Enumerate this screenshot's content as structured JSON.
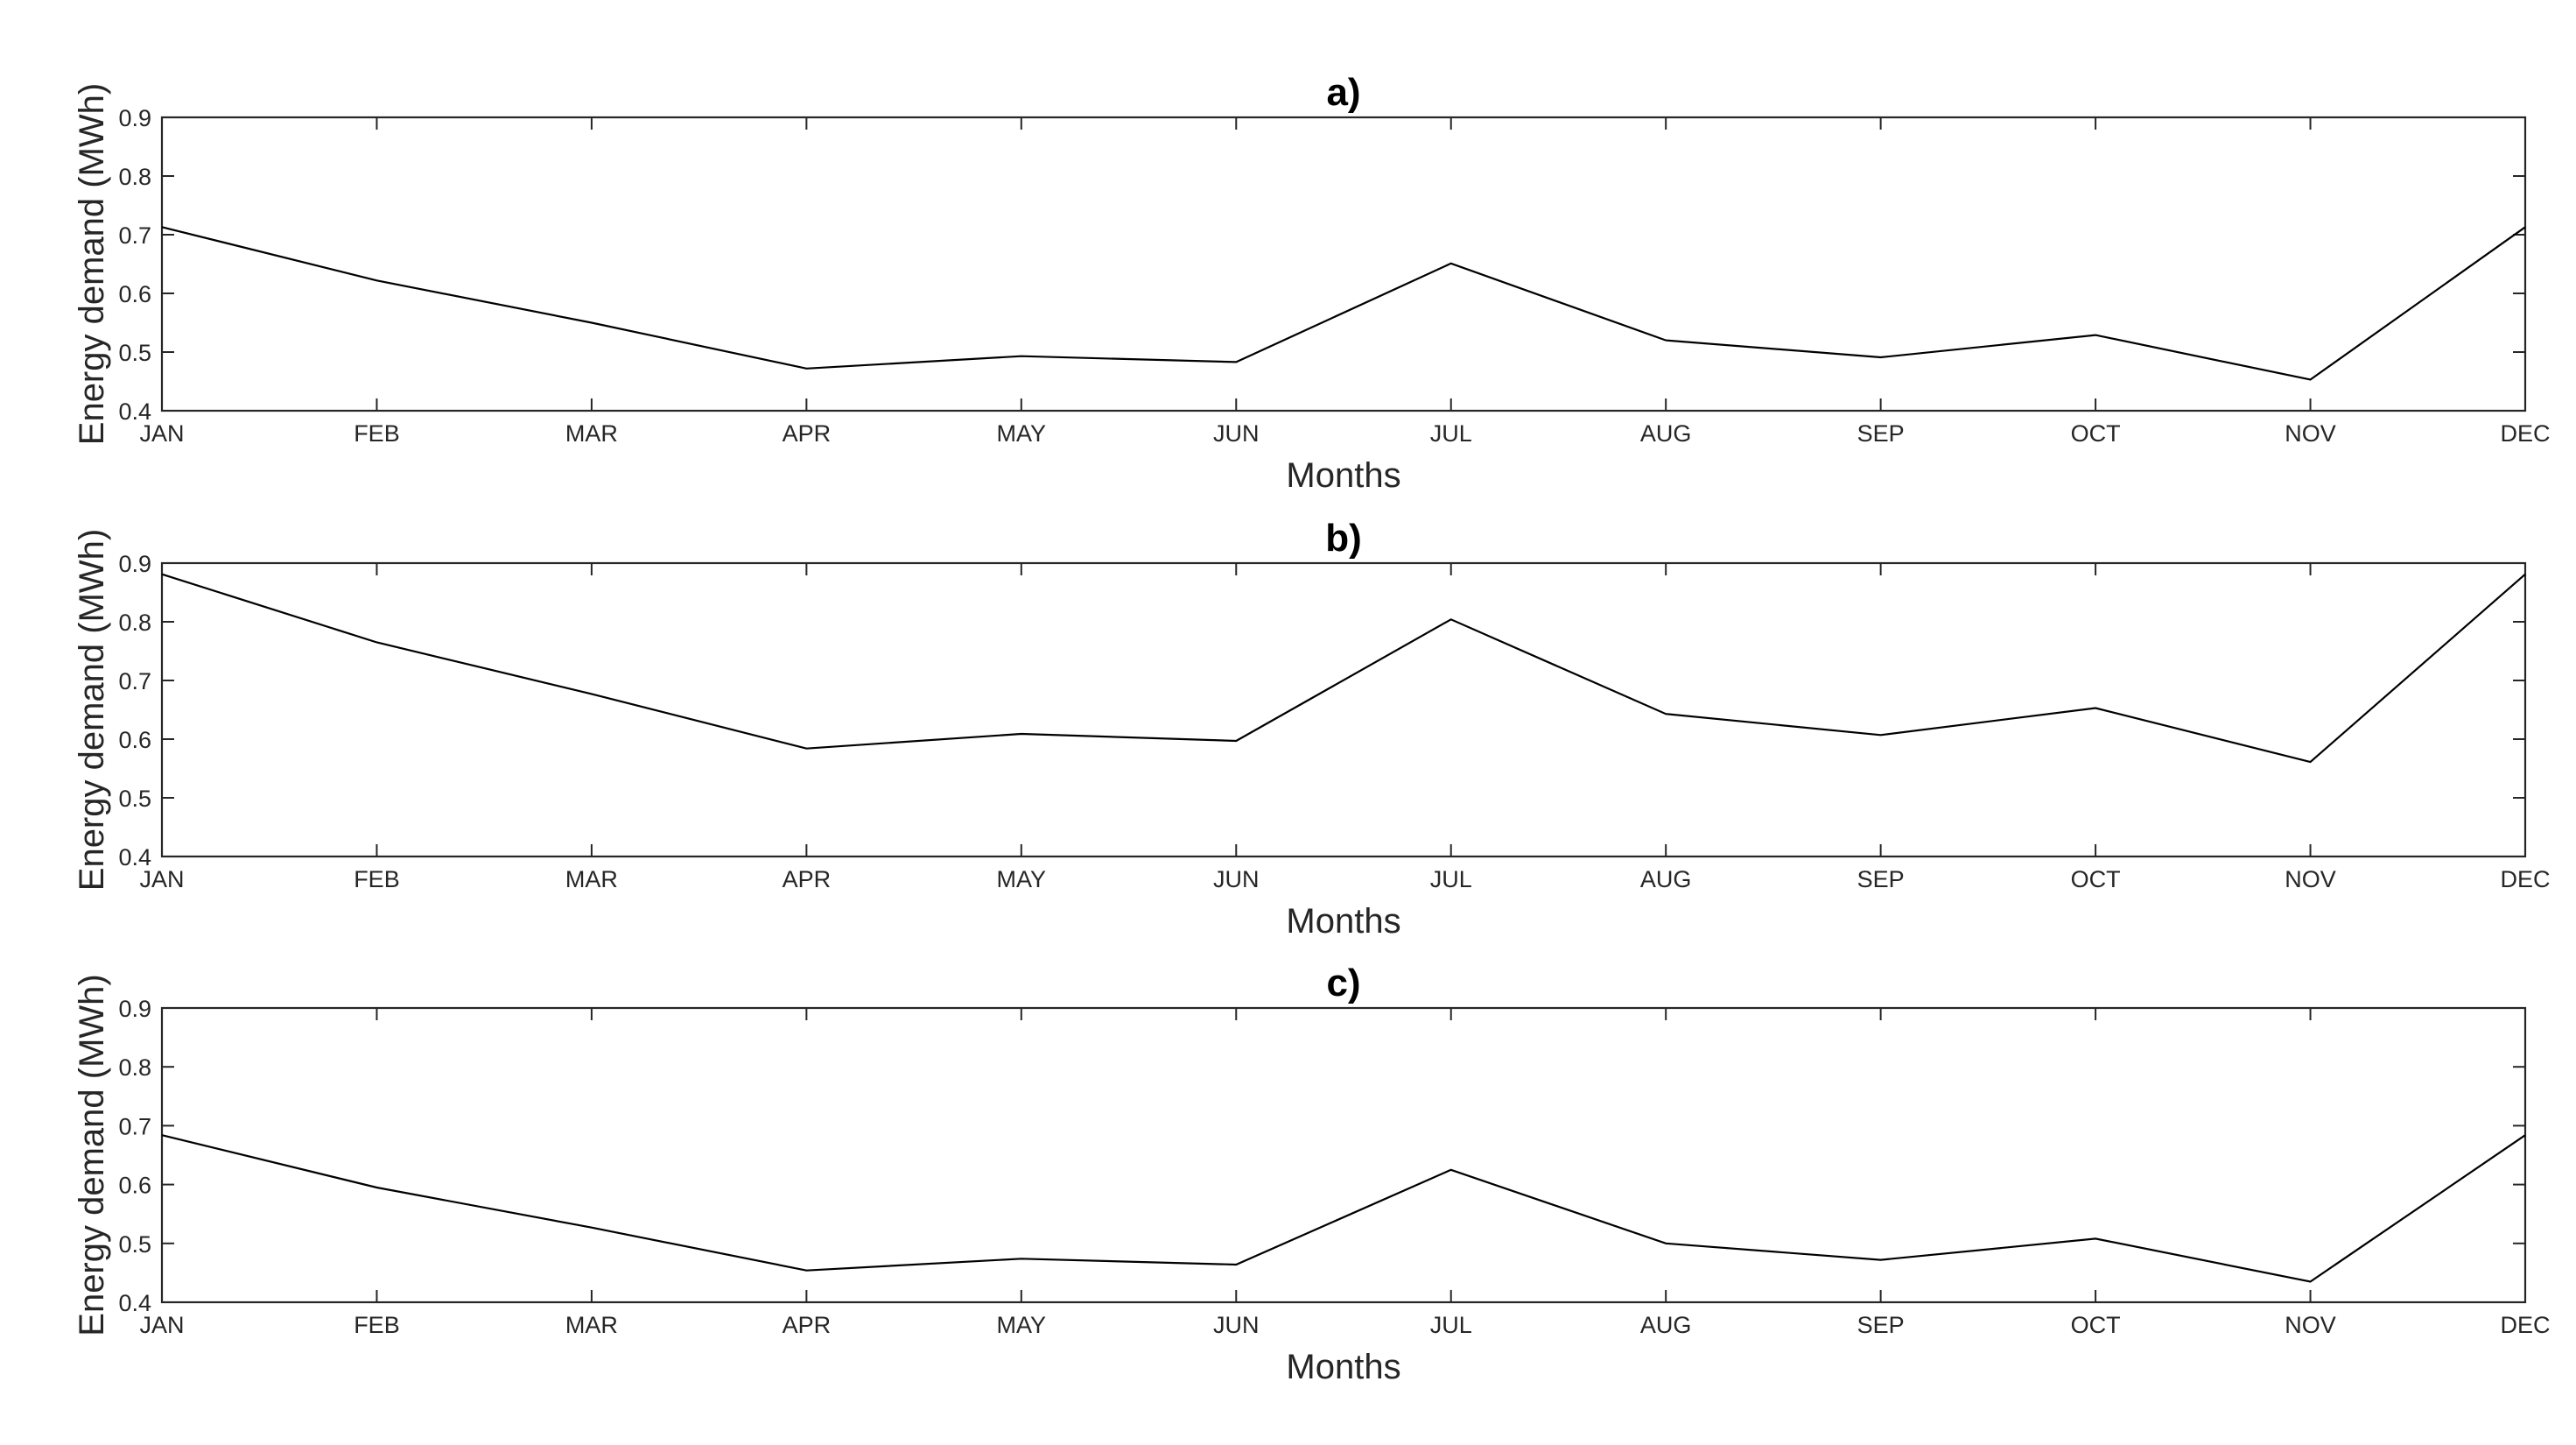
{
  "chart_data": [
    {
      "type": "line",
      "title": "a)",
      "xlabel": "Months",
      "ylabel": "Energy demand (MWh)",
      "categories": [
        "JAN",
        "FEB",
        "MAR",
        "APR",
        "MAY",
        "JUN",
        "JUL",
        "AUG",
        "SEP",
        "OCT",
        "NOV",
        "DEC"
      ],
      "yticks": [
        "0.4",
        "0.5",
        "0.6",
        "0.7",
        "0.8",
        "0.9"
      ],
      "ylim": [
        0.4,
        0.9
      ],
      "grid": false,
      "series": [
        {
          "values": [
            0.713,
            0.622,
            0.55,
            0.472,
            0.493,
            0.483,
            0.651,
            0.52,
            0.491,
            0.529,
            0.453,
            0.713
          ]
        }
      ]
    },
    {
      "type": "line",
      "title": "b)",
      "xlabel": "Months",
      "ylabel": "Energy demand (MWh)",
      "categories": [
        "JAN",
        "FEB",
        "MAR",
        "APR",
        "MAY",
        "JUN",
        "JUL",
        "AUG",
        "SEP",
        "OCT",
        "NOV",
        "DEC"
      ],
      "yticks": [
        "0.4",
        "0.5",
        "0.6",
        "0.7",
        "0.8",
        "0.9"
      ],
      "ylim": [
        0.4,
        0.9
      ],
      "grid": false,
      "series": [
        {
          "values": [
            0.881,
            0.765,
            0.677,
            0.584,
            0.609,
            0.597,
            0.804,
            0.643,
            0.607,
            0.653,
            0.561,
            0.881
          ]
        }
      ]
    },
    {
      "type": "line",
      "title": "c)",
      "xlabel": "Months",
      "ylabel": "Energy demand (MWh)",
      "categories": [
        "JAN",
        "FEB",
        "MAR",
        "APR",
        "MAY",
        "JUN",
        "JUL",
        "AUG",
        "SEP",
        "OCT",
        "NOV",
        "DEC"
      ],
      "yticks": [
        "0.4",
        "0.5",
        "0.6",
        "0.7",
        "0.8",
        "0.9"
      ],
      "ylim": [
        0.4,
        0.9
      ],
      "grid": false,
      "series": [
        {
          "values": [
            0.684,
            0.595,
            0.527,
            0.454,
            0.474,
            0.464,
            0.625,
            0.5,
            0.472,
            0.508,
            0.435,
            0.684
          ]
        }
      ]
    }
  ]
}
